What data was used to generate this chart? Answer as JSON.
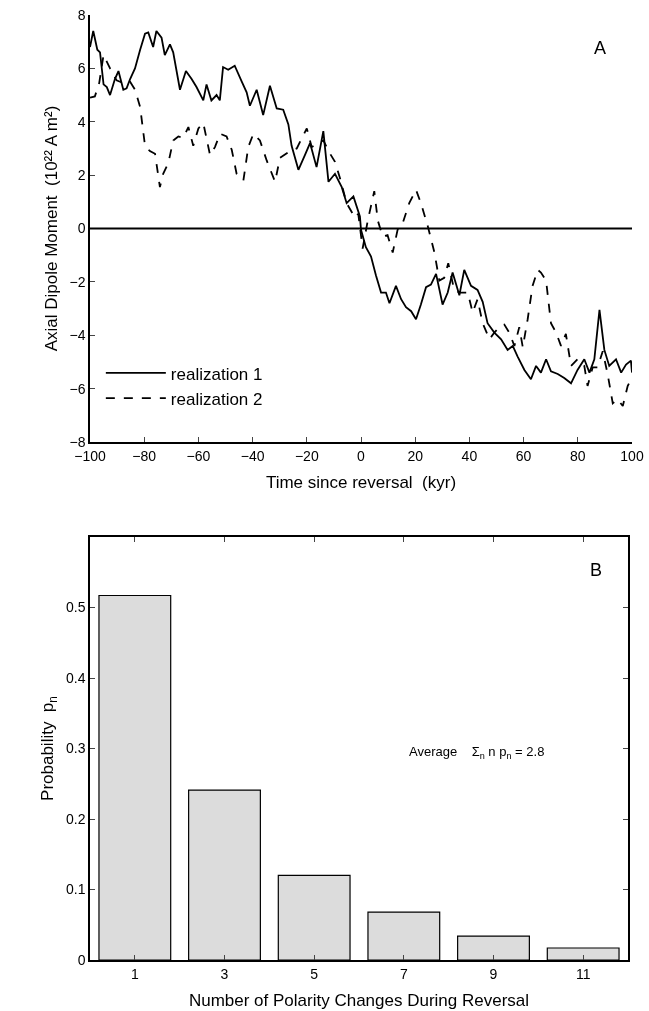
{
  "chart_data": [
    {
      "type": "line",
      "xlabel": "Time since reversal  (kyr)",
      "ylabel": "Axial Dipole Moment  (10²² A m²)",
      "annotations": [
        "A"
      ],
      "xlim": [
        -100,
        100
      ],
      "xticks": [
        {
          "value": -100,
          "label": "−100"
        },
        {
          "value": -80,
          "label": "−80"
        },
        {
          "value": -60,
          "label": "−60"
        },
        {
          "value": -40,
          "label": "−40"
        },
        {
          "value": -20,
          "label": "−20"
        },
        0,
        20,
        40,
        60,
        80,
        100
      ],
      "ylim": [
        -8,
        8
      ],
      "yticks": [
        {
          "value": -8,
          "label": "−8"
        },
        {
          "value": -6,
          "label": "−6"
        },
        {
          "value": -4,
          "label": "−4"
        },
        {
          "value": -2,
          "label": "−2"
        },
        0,
        2,
        4,
        6,
        8
      ],
      "legend": "bottom left",
      "marker": "none",
      "ref_lines": [
        {
          "axis": "y",
          "value": 0,
          "color": "#000000",
          "line_style": "solid"
        }
      ],
      "series": [
        {
          "name": "realization 1",
          "color": "#000000",
          "line_style": "solid",
          "x": [
            -100,
            -98.8,
            -97.3,
            -96.3,
            -95,
            -93.8,
            -92.6,
            -90.8,
            -89.5,
            -87.7,
            -86.5,
            -85.2,
            -83.4,
            -81.5,
            -79.7,
            -78.5,
            -76.7,
            -75.5,
            -73.6,
            -72.4,
            -70.5,
            -69.3,
            -66.8,
            -64.6,
            -62.5,
            -60.7,
            -58.2,
            -57,
            -55.2,
            -53.3,
            -52.1,
            -50.9,
            -49,
            -46.6,
            -44,
            -42.2,
            -41,
            -38.5,
            -36.1,
            -33.6,
            -31.1,
            -28.7,
            -26.8,
            -25.6,
            -23.1,
            -20.7,
            -18.8,
            -16.4,
            -13.9,
            -12,
            -9.6,
            -7.1,
            -5.3,
            -2.8,
            -0.4,
            0,
            1.8,
            3.7,
            5.5,
            7.4,
            9.2,
            10.5,
            12.9,
            14.8,
            16.6,
            18.5,
            20.3,
            22.1,
            24,
            25.8,
            27.7,
            30.1,
            32,
            33.8,
            36.3,
            38.1,
            40.6,
            43,
            44.9,
            46.7,
            49.2,
            51.7,
            54.1,
            56,
            57.8,
            60.3,
            62.7,
            64.6,
            66.4,
            68.3,
            70.1,
            72.6,
            75,
            77.5,
            79.9,
            82.4,
            84.3,
            86.1,
            88,
            89.8,
            91.6,
            94.1,
            96,
            97.8,
            99.6,
            100
          ],
          "values": [
            6.8,
            7.4,
            6.7,
            6.6,
            5.4,
            5.3,
            5.0,
            5.6,
            5.9,
            5.2,
            5.25,
            5.6,
            6.0,
            6.7,
            7.3,
            7.35,
            6.8,
            7.4,
            7.15,
            6.5,
            6.9,
            6.6,
            5.2,
            5.9,
            5.6,
            5.3,
            4.8,
            5.4,
            4.8,
            5.0,
            4.8,
            6.05,
            5.95,
            6.1,
            5.5,
            5.1,
            4.6,
            5.2,
            4.25,
            5.35,
            4.5,
            4.45,
            3.9,
            3.1,
            2.2,
            2.75,
            3.2,
            2.3,
            3.65,
            1.75,
            2.05,
            1.55,
            0.95,
            1.2,
            0.45,
            -0.05,
            -0.7,
            -1.05,
            -1.75,
            -2.4,
            -2.4,
            -2.8,
            -2.15,
            -2.65,
            -2.95,
            -3.1,
            -3.4,
            -2.85,
            -2.2,
            -2.1,
            -1.7,
            -2.85,
            -2.4,
            -1.65,
            -2.5,
            -1.55,
            -2.15,
            -2.3,
            -2.75,
            -3.55,
            -3.9,
            -4.15,
            -4.55,
            -4.4,
            -4.8,
            -5.3,
            -5.65,
            -5.15,
            -5.4,
            -4.9,
            -5.35,
            -5.45,
            -5.6,
            -5.8,
            -5.3,
            -4.9,
            -5.4,
            -4.9,
            -3.05,
            -4.55,
            -5.15,
            -4.9,
            -5.4,
            -5.1,
            -4.95,
            -5.4
          ]
        },
        {
          "name": "realization 2",
          "color": "#000000",
          "line_style": "dashed",
          "x": [
            -100,
            -98.2,
            -96.6,
            -95,
            -92.6,
            -90.2,
            -87.7,
            -85.2,
            -83.4,
            -81.5,
            -79.7,
            -77.9,
            -76,
            -74.2,
            -73,
            -71.1,
            -69.3,
            -67.4,
            -65.6,
            -63.7,
            -61.9,
            -60,
            -58.2,
            -55.7,
            -53.9,
            -52,
            -49.6,
            -47.7,
            -45.9,
            -43.4,
            -41.6,
            -39.7,
            -37.3,
            -34.8,
            -31.7,
            -29.9,
            -26.2,
            -23.7,
            -20,
            -18.2,
            -13.9,
            -11.4,
            -9.6,
            -7.8,
            -5.3,
            -2.2,
            -1,
            0.6,
            2.5,
            4.9,
            6.2,
            8,
            9.8,
            11.7,
            13.5,
            15.4,
            17.8,
            20.3,
            22.1,
            24.6,
            27.1,
            28.9,
            30.7,
            32.2,
            34.4,
            36.3,
            39.4,
            41.2,
            43,
            44.9,
            47.4,
            49.2,
            51,
            52.9,
            54.7,
            56.6,
            58.4,
            59.7,
            61.5,
            63.3,
            65.2,
            66.4,
            68.3,
            70.1,
            72,
            73.8,
            75.6,
            77.5,
            79.9,
            82.4,
            83.6,
            85.5,
            87.3,
            89.2,
            91,
            92.9,
            94.7,
            96.6,
            98.4,
            100
          ],
          "values": [
            4.9,
            4.95,
            5.45,
            6.5,
            6.0,
            5.55,
            5.45,
            5.5,
            5.2,
            4.55,
            3.1,
            2.9,
            2.8,
            1.55,
            2.05,
            2.45,
            3.3,
            3.45,
            3.4,
            3.8,
            3.1,
            3.75,
            3.95,
            2.75,
            3.05,
            3.55,
            3.45,
            2.95,
            2.05,
            1.8,
            3.05,
            3.55,
            3.3,
            2.55,
            1.75,
            2.65,
            2.9,
            3.0,
            3.75,
            3.05,
            3.3,
            2.8,
            2.5,
            1.9,
            0.95,
            0.4,
            0.55,
            -0.75,
            0.3,
            1.4,
            0.3,
            -0.3,
            -0.25,
            -0.9,
            -0.05,
            0.2,
            0.95,
            1.45,
            0.95,
            0.1,
            -0.9,
            -1.95,
            -1.85,
            -1.3,
            -2.3,
            -2.4,
            -2.4,
            -3.15,
            -2.65,
            -3.55,
            -4.15,
            -3.9,
            -3.7,
            -3.6,
            -3.9,
            -4.4,
            -3.7,
            -4.45,
            -3.4,
            -2.15,
            -1.55,
            -1.65,
            -1.95,
            -3.55,
            -3.9,
            -4.4,
            -3.95,
            -5.15,
            -4.9,
            -5.15,
            -5.9,
            -5.2,
            -5.2,
            -4.6,
            -5.45,
            -6.55,
            -6.4,
            -6.65,
            -5.9,
            -5.6
          ]
        }
      ]
    },
    {
      "type": "bar",
      "xlabel": "Number of Polarity Changes During Reversal",
      "ylabel": "Probability  p$_{n}$",
      "annotations": [
        "B",
        "Average    Σ$_{n}$ n p$_{n}$ = 2.8"
      ],
      "x": [
        1,
        3,
        5,
        7,
        9,
        11
      ],
      "values": [
        0.517,
        0.241,
        0.12,
        0.068,
        0.034,
        0.017
      ],
      "color": "#dcdcdc",
      "xlim": [
        0,
        12
      ],
      "xticks": [
        1,
        3,
        5,
        7,
        9,
        11
      ],
      "ylim": [
        0,
        0.6
      ],
      "yticks": [
        0,
        0.1,
        0.2,
        0.3,
        0.4,
        0.5
      ],
      "legend": false
    }
  ]
}
